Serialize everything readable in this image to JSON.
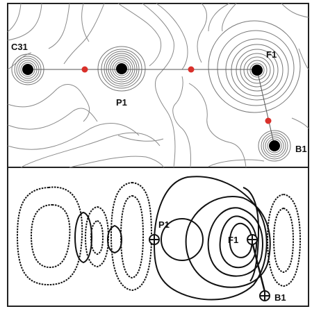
{
  "top_panel": {
    "atoms": [
      {
        "label": "C31"
      },
      {
        "label": "P1"
      },
      {
        "label": "F1"
      },
      {
        "label": "B1"
      }
    ]
  },
  "bottom_panel": {
    "atoms": [
      {
        "label": "P1"
      },
      {
        "label": "F1"
      },
      {
        "label": "B1"
      }
    ]
  },
  "colors": {
    "critical_point": "#d9302a",
    "nucleus": "#000000",
    "contour": "#777777",
    "frame": "#222222"
  }
}
